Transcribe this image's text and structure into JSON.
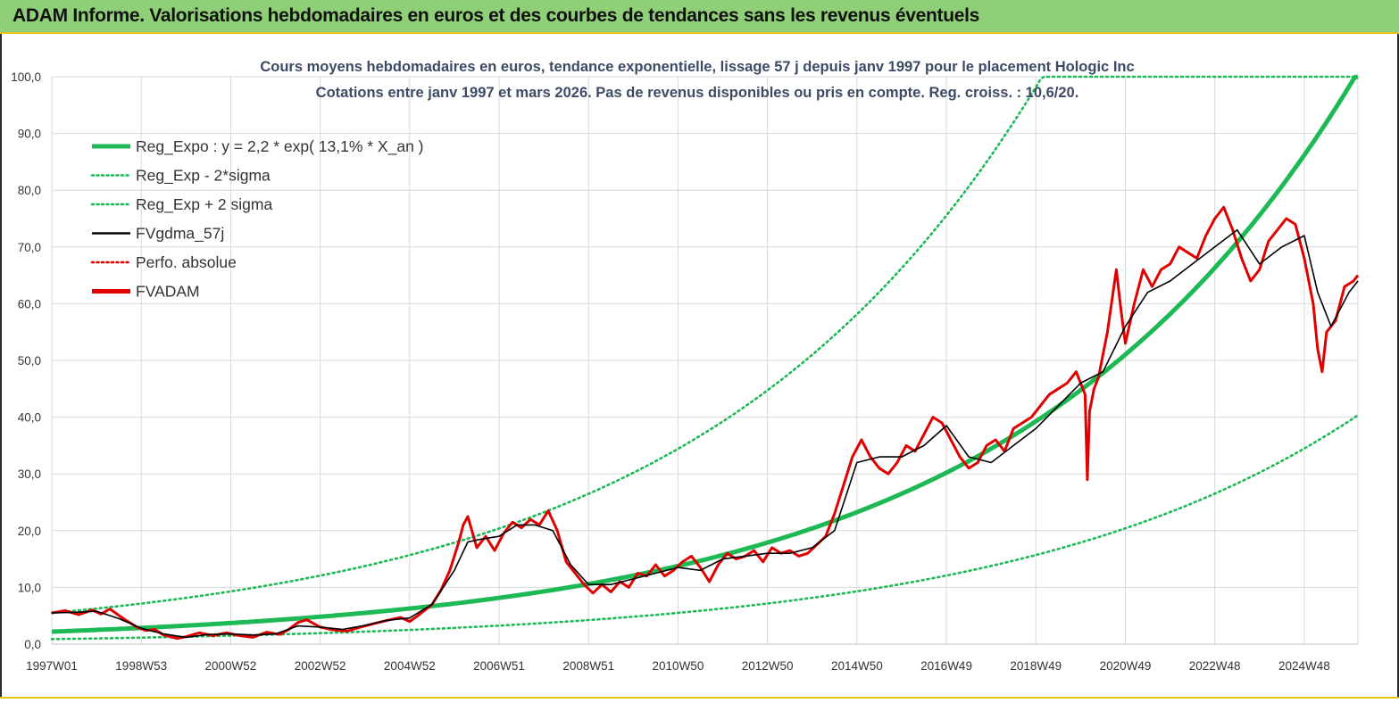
{
  "header": {
    "title": "ADAM Informe. Valorisations hebdomadaires en euros et des courbes de tendances sans les revenus éventuels"
  },
  "chart_data": {
    "type": "line",
    "title": "Cours moyens hebdomadaires en euros, tendance exponentielle, lissage 57 j depuis janv 1997 pour le placement Hologic Inc",
    "subtitle": "Cotations entre janv 1997 et mars 2026. Pas de revenus disponibles ou pris en compte. Reg. croiss. : 10,6/20.",
    "xlabel": "",
    "ylabel": "",
    "ylim": [
      0,
      100
    ],
    "xlim": [
      1997.0,
      2026.2
    ],
    "grid": true,
    "legend_position": "top-left",
    "y_ticks": [
      "0,0",
      "10,0",
      "20,0",
      "30,0",
      "40,0",
      "50,0",
      "60,0",
      "70,0",
      "80,0",
      "90,0",
      "100,0"
    ],
    "x_ticks": [
      {
        "label": "1997W01",
        "x": 1997.0
      },
      {
        "label": "1998W53",
        "x": 1999.0
      },
      {
        "label": "2000W52",
        "x": 2001.0
      },
      {
        "label": "2002W52",
        "x": 2003.0
      },
      {
        "label": "2004W52",
        "x": 2005.0
      },
      {
        "label": "2006W51",
        "x": 2007.0
      },
      {
        "label": "2008W51",
        "x": 2009.0
      },
      {
        "label": "2010W50",
        "x": 2011.0
      },
      {
        "label": "2012W50",
        "x": 2013.0
      },
      {
        "label": "2014W50",
        "x": 2015.0
      },
      {
        "label": "2016W49",
        "x": 2017.0
      },
      {
        "label": "2018W49",
        "x": 2019.0
      },
      {
        "label": "2020W49",
        "x": 2021.0
      },
      {
        "label": "2022W48",
        "x": 2023.0
      },
      {
        "label": "2024W48",
        "x": 2025.0
      }
    ],
    "legend": [
      {
        "label": "Reg_Expo : y = 2,2 * exp( 13,1% *  X_an )",
        "color": "#1db954",
        "style": "solid-thick"
      },
      {
        "label": "Reg_Exp - 2*sigma",
        "color": "#1db954",
        "style": "dotted"
      },
      {
        "label": "Reg_Exp + 2 sigma",
        "color": "#1db954",
        "style": "dotted"
      },
      {
        "label": "FVgdma_57j",
        "color": "#000000",
        "style": "solid"
      },
      {
        "label": "Perfo. absolue",
        "color": "#e00000",
        "style": "dotted"
      },
      {
        "label": "FVADAM",
        "color": "#e00000",
        "style": "solid-thick"
      }
    ],
    "regression": {
      "a": 2.2,
      "rate": 0.131,
      "upper_factor": 2.5,
      "lower_factor": 0.4
    },
    "series": [
      {
        "name": "FVADAM",
        "color": "#e00000",
        "x": [
          1997.0,
          1997.3,
          1997.6,
          1997.9,
          1998.1,
          1998.3,
          1998.6,
          1998.9,
          1999.1,
          1999.3,
          1999.5,
          1999.8,
          2000.0,
          2000.3,
          2000.6,
          2000.9,
          2001.2,
          2001.5,
          2001.8,
          2002.1,
          2002.3,
          2002.5,
          2002.7,
          2003.0,
          2003.3,
          2003.6,
          2003.9,
          2004.2,
          2004.5,
          2004.8,
          2005.0,
          2005.2,
          2005.5,
          2005.7,
          2005.9,
          2006.1,
          2006.2,
          2006.3,
          2006.5,
          2006.7,
          2006.9,
          2007.1,
          2007.3,
          2007.5,
          2007.7,
          2007.9,
          2008.1,
          2008.3,
          2008.5,
          2008.7,
          2008.9,
          2009.1,
          2009.3,
          2009.5,
          2009.7,
          2009.9,
          2010.1,
          2010.3,
          2010.5,
          2010.7,
          2010.9,
          2011.1,
          2011.3,
          2011.5,
          2011.7,
          2011.9,
          2012.1,
          2012.3,
          2012.5,
          2012.7,
          2012.9,
          2013.1,
          2013.3,
          2013.5,
          2013.7,
          2013.9,
          2014.1,
          2014.3,
          2014.5,
          2014.7,
          2014.9,
          2015.1,
          2015.3,
          2015.5,
          2015.7,
          2015.9,
          2016.1,
          2016.3,
          2016.5,
          2016.7,
          2016.9,
          2017.1,
          2017.3,
          2017.5,
          2017.7,
          2017.9,
          2018.1,
          2018.3,
          2018.5,
          2018.7,
          2018.9,
          2019.1,
          2019.3,
          2019.5,
          2019.7,
          2019.9,
          2020.1,
          2020.15,
          2020.2,
          2020.3,
          2020.4,
          2020.6,
          2020.8,
          2020.9,
          2021.0,
          2021.2,
          2021.4,
          2021.6,
          2021.8,
          2022.0,
          2022.2,
          2022.4,
          2022.6,
          2022.8,
          2023.0,
          2023.2,
          2023.4,
          2023.6,
          2023.8,
          2024.0,
          2024.2,
          2024.4,
          2024.6,
          2024.8,
          2025.0,
          2025.2,
          2025.3,
          2025.4,
          2025.5,
          2025.7,
          2025.9,
          2026.1,
          2026.2
        ],
        "values": [
          5.5,
          5.9,
          5.2,
          6.0,
          5.3,
          6.2,
          4.5,
          3.0,
          2.4,
          2.6,
          1.6,
          1.0,
          1.3,
          2.0,
          1.5,
          2.0,
          1.5,
          1.2,
          2.1,
          1.7,
          2.6,
          3.8,
          4.3,
          3.0,
          2.5,
          2.3,
          3.0,
          3.6,
          4.2,
          4.7,
          4.0,
          5.1,
          7.0,
          9.5,
          13.0,
          18.0,
          21.0,
          22.5,
          17.0,
          19.0,
          16.5,
          19.5,
          21.5,
          20.5,
          22.0,
          21.0,
          23.5,
          20.0,
          14.5,
          12.5,
          10.5,
          9.0,
          10.5,
          9.2,
          11.0,
          10.0,
          12.5,
          12.0,
          14.0,
          12.0,
          13.0,
          14.5,
          15.5,
          13.5,
          11.0,
          14.0,
          16.0,
          15.0,
          15.5,
          16.5,
          14.5,
          17.0,
          16.0,
          16.5,
          15.5,
          16.0,
          17.5,
          19.0,
          23.0,
          28.0,
          33.0,
          36.0,
          33.0,
          31.0,
          30.0,
          32.0,
          35.0,
          34.0,
          37.0,
          40.0,
          39.0,
          36.0,
          33.0,
          31.0,
          32.0,
          35.0,
          36.0,
          34.0,
          38.0,
          39.0,
          40.0,
          42.0,
          44.0,
          45.0,
          46.0,
          48.0,
          44.0,
          29.0,
          41.0,
          45.0,
          47.0,
          55.0,
          66.0,
          59.0,
          53.0,
          60.0,
          66.0,
          63.0,
          66.0,
          67.0,
          70.0,
          69.0,
          68.0,
          72.0,
          75.0,
          77.0,
          73.0,
          68.0,
          64.0,
          66.0,
          71.0,
          73.0,
          75.0,
          74.0,
          68.0,
          60.0,
          52.0,
          48.0,
          55.0,
          57.0,
          63.0,
          64.0,
          65.0
        ]
      },
      {
        "name": "FVgdma_57j",
        "color": "#000000",
        "x": [
          1997.0,
          1997.5,
          1998.0,
          1998.5,
          1999.0,
          1999.5,
          2000.0,
          2000.5,
          2001.0,
          2001.5,
          2002.0,
          2002.5,
          2003.0,
          2003.5,
          2004.0,
          2004.5,
          2005.0,
          2005.5,
          2006.0,
          2006.3,
          2006.6,
          2007.0,
          2007.4,
          2007.8,
          2008.2,
          2008.6,
          2009.0,
          2009.5,
          2010.0,
          2010.5,
          2011.0,
          2011.5,
          2012.0,
          2012.5,
          2013.0,
          2013.5,
          2014.0,
          2014.5,
          2015.0,
          2015.5,
          2016.0,
          2016.5,
          2017.0,
          2017.5,
          2018.0,
          2018.5,
          2019.0,
          2019.5,
          2020.0,
          2020.5,
          2021.0,
          2021.5,
          2022.0,
          2022.5,
          2023.0,
          2023.5,
          2024.0,
          2024.5,
          2025.0,
          2025.3,
          2025.6,
          2026.0,
          2026.2
        ],
        "values": [
          5.5,
          5.6,
          5.8,
          4.5,
          2.8,
          1.8,
          1.2,
          1.7,
          1.8,
          1.6,
          1.8,
          3.2,
          3.0,
          2.6,
          3.3,
          4.2,
          4.6,
          7.0,
          13.0,
          18.0,
          18.5,
          19.0,
          21.0,
          21.0,
          20.0,
          14.0,
          10.5,
          10.5,
          11.5,
          12.5,
          13.5,
          13.0,
          15.0,
          15.5,
          16.0,
          16.0,
          17.0,
          20.0,
          32.0,
          33.0,
          33.0,
          35.0,
          38.5,
          33.0,
          32.0,
          35.0,
          38.0,
          42.0,
          46.0,
          48.0,
          56.0,
          62.0,
          64.0,
          67.0,
          70.0,
          73.0,
          67.0,
          70.0,
          72.0,
          62.0,
          56.0,
          62.0,
          64.0
        ]
      }
    ]
  }
}
